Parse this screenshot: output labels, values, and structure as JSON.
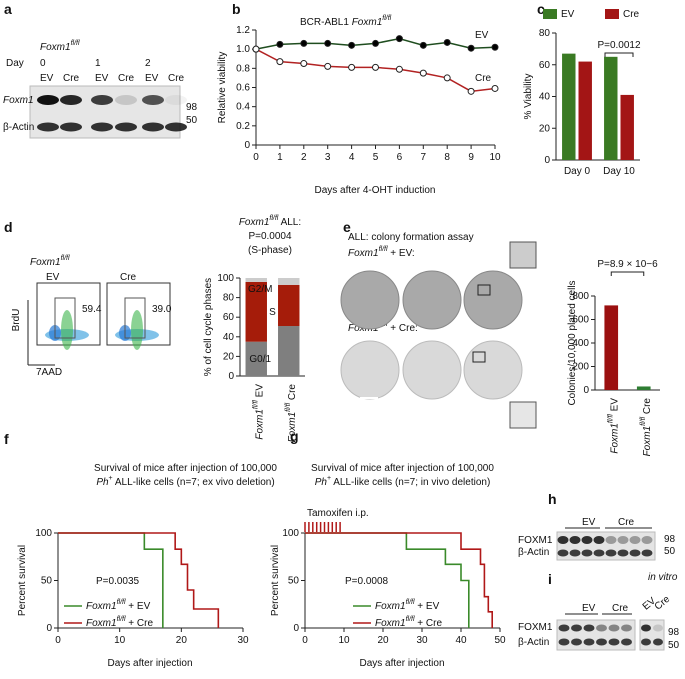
{
  "panel_labels": [
    "a",
    "b",
    "c",
    "d",
    "e",
    "f",
    "g",
    "h",
    "i"
  ],
  "blot_a": {
    "genotype": "Foxm1fl/fl",
    "day_label": "Day",
    "days": [
      "0",
      "1",
      "2"
    ],
    "lanes": [
      "EV",
      "Cre",
      "EV",
      "Cre",
      "EV",
      "Cre"
    ],
    "rows": [
      "Foxm1",
      "β-Actin"
    ],
    "markers": [
      "98",
      "50"
    ]
  },
  "flow_d": {
    "genotype": "Foxm1fl/fl",
    "samples": [
      "EV",
      "Cre"
    ],
    "gates": [
      "59.4",
      "39.0"
    ],
    "y_axis": "BrdU",
    "x_axis": "7AAD"
  },
  "colony_e": {
    "title": "ALL: colony formation assay",
    "rows": [
      "Foxm1fl/fl + EV:",
      "Foxm1fl/fl + Cre:"
    ]
  },
  "blot_h": {
    "groups": [
      "EV",
      "Cre"
    ],
    "rows": [
      "FOXM1",
      "β-Actin"
    ],
    "markers": [
      "98",
      "50"
    ]
  },
  "blot_i": {
    "note": "in vitro",
    "groups": [
      "EV",
      "Cre"
    ],
    "lanes": [
      "EV",
      "Cre"
    ],
    "rows": [
      "FOXM1",
      "β-Actin"
    ],
    "markers": [
      "98",
      "50"
    ]
  },
  "chart_data": [
    {
      "type": "line",
      "title": "BCR-ABL1 Foxm1fl/fl",
      "x": [
        0,
        1,
        2,
        3,
        4,
        5,
        6,
        7,
        8,
        9,
        10
      ],
      "xlim": [
        0,
        10
      ],
      "xticks": [
        0,
        1,
        2,
        3,
        4,
        5,
        6,
        7,
        8,
        9,
        10
      ],
      "ylim": [
        0,
        1.2
      ],
      "yticks": [
        0,
        0.2,
        0.4,
        0.6,
        0.8,
        {
          "value": 1,
          "label": "1.0"
        },
        1.2
      ],
      "xlabel": "Days after 4-OHT induction",
      "ylabel": "Relative viability",
      "series": [
        {
          "name": "EV",
          "color": "#1f4d1f",
          "marker_fill": "#000000",
          "values": [
            1.0,
            1.05,
            1.06,
            1.06,
            1.04,
            1.06,
            1.11,
            1.04,
            1.07,
            1.01,
            1.02
          ]
        },
        {
          "name": "Cre",
          "color": "#b22222",
          "marker_fill": "#ffffff",
          "values": [
            1.0,
            0.87,
            0.85,
            0.82,
            0.81,
            0.81,
            0.79,
            0.75,
            0.7,
            0.56,
            0.59
          ]
        }
      ]
    },
    {
      "type": "bar",
      "categories": [
        "Day 0",
        "Day 10"
      ],
      "ylim": [
        0,
        80
      ],
      "yticks": [
        0,
        20,
        40,
        60,
        80
      ],
      "ylabel": "% Viability",
      "annotation": "P=0.0012",
      "legend": "top",
      "series": [
        {
          "name": "EV",
          "color": "#3a7a23",
          "values": [
            67,
            65
          ]
        },
        {
          "name": "Cre",
          "color": "#a31515",
          "values": [
            62,
            41
          ]
        }
      ]
    },
    {
      "type": "stacked_bar",
      "title": [
        "Foxm1fl/fl ALL:",
        "P=0.0004",
        "(S-phase)"
      ],
      "categories": [
        "Foxm1fl/fl EV",
        "Foxm1fl/fl Cre"
      ],
      "ylim": [
        0,
        100
      ],
      "yticks": [
        0,
        20,
        40,
        60,
        80,
        100
      ],
      "ylabel": "% of cell cycle phases",
      "series": [
        {
          "name": "G0/1",
          "color": "#7f7f7f",
          "values": [
            35,
            51
          ]
        },
        {
          "name": "S",
          "color": "#a51c0a",
          "values": [
            61,
            42
          ]
        },
        {
          "name": "G2/M",
          "color": "#cccccc",
          "values": [
            4,
            7
          ]
        }
      ]
    },
    {
      "type": "bar",
      "categories": [
        "Foxm1fl/fl EV",
        "Foxm1fl/fl Cre"
      ],
      "values": [
        720,
        30
      ],
      "colors": [
        "#9b1010",
        "#2e7d32"
      ],
      "ylim": [
        0,
        800
      ],
      "yticks": [
        0,
        200,
        400,
        600,
        800
      ],
      "ylabel": "Colonies/10,000 plated cells",
      "annotation": "P=8.9 × 10−6"
    },
    {
      "type": "step",
      "title": [
        "Survival of mice after injection of 100,000",
        "Ph+ ALL-like cells (n=7; ex vivo deletion)"
      ],
      "xlim": [
        0,
        30
      ],
      "xticks": [
        0,
        10,
        20,
        30
      ],
      "ylim": [
        0,
        100
      ],
      "yticks": [
        0,
        50,
        100
      ],
      "xlabel": "Days after injection",
      "ylabel": "Percent survival",
      "annotation": "P=0.0035",
      "series": [
        {
          "name": "Foxm1fl/fl + EV",
          "color": "#3a8a2a",
          "x": [
            0,
            14,
            17
          ],
          "values": [
            100,
            83,
            0
          ]
        },
        {
          "name": "Foxm1fl/fl + Cre",
          "color": "#b01818",
          "x": [
            0,
            19,
            20,
            21,
            22,
            26
          ],
          "values": [
            100,
            83,
            67,
            40,
            20,
            0
          ]
        }
      ]
    },
    {
      "type": "step",
      "title": [
        "Survival of mice after injection of 100,000",
        "Ph+ ALL-like cells (n=7; in vivo deletion)"
      ],
      "xlim": [
        0,
        50
      ],
      "xticks": [
        0,
        10,
        20,
        30,
        40,
        50
      ],
      "ylim": [
        0,
        100
      ],
      "yticks": [
        0,
        50,
        100
      ],
      "xlabel": "Days after injection",
      "ylabel": "Percent survival",
      "annotation": "P=0.0008",
      "treatment": "Tamoxifen i.p.",
      "treatment_days": [
        0,
        1,
        2,
        3,
        4,
        5,
        6,
        7,
        8,
        9
      ],
      "treatment_color": "#b01818",
      "series": [
        {
          "name": "Foxm1fl/fl + EV",
          "color": "#3a8a2a",
          "x": [
            0,
            26,
            36,
            40,
            42
          ],
          "values": [
            100,
            83,
            67,
            50,
            0
          ]
        },
        {
          "name": "Foxm1fl/fl + Cre",
          "color": "#b01818",
          "x": [
            0,
            40,
            45,
            46,
            47,
            48
          ],
          "values": [
            100,
            83,
            67,
            33,
            17,
            0
          ]
        }
      ]
    }
  ]
}
